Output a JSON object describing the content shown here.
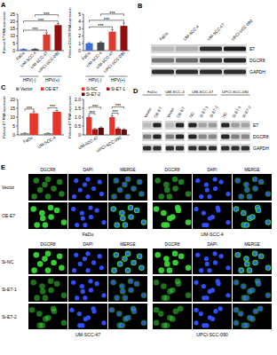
{
  "chart_data": [
    {
      "type": "bar",
      "y_label": "Relative E7 RNA expression",
      "categories": [
        "FaDu",
        "UM-SCC-4",
        "UM-SCC-47",
        "UPCI-SCC-090"
      ],
      "values": [
        1,
        1.1,
        11,
        17.5
      ],
      "errors": [
        0.1,
        0.15,
        1.2,
        1
      ],
      "colors": [
        "#3d6fd8",
        "#4a4a4a",
        "#e03a2f",
        "#8e1010"
      ],
      "ylim": [
        0,
        25
      ],
      "yticks": [
        0,
        5,
        10,
        15,
        20,
        25
      ],
      "category_groups": [
        {
          "label": "HPV(-)",
          "from": 0,
          "to": 1
        },
        {
          "label": "HPV(+)",
          "from": 2,
          "to": 3
        }
      ],
      "annotations": [
        {
          "text": "***",
          "from": 0,
          "to": 2
        },
        {
          "text": "***",
          "from": 0,
          "to": 3
        },
        {
          "text": "***",
          "from": 1,
          "to": 3
        }
      ]
    },
    {
      "type": "bar",
      "y_label": "Relative DGCR8 RNA expression",
      "categories": [
        "FaDu",
        "UM-SCC-4",
        "UM-SCC-47",
        "UPCI-SCC-090"
      ],
      "values": [
        1,
        1.1,
        2.6,
        3.4
      ],
      "errors": [
        0.08,
        0.1,
        0.3,
        0.4
      ],
      "colors": [
        "#3d6fd8",
        "#4a4a4a",
        "#e03a2f",
        "#8e1010"
      ],
      "ylim": [
        0,
        5
      ],
      "yticks": [
        0,
        1,
        2,
        3,
        4,
        5
      ],
      "category_groups": [
        {
          "label": "HPV(-)",
          "from": 0,
          "to": 1
        },
        {
          "label": "HPV(+)",
          "from": 2,
          "to": 3
        }
      ],
      "annotations": [
        {
          "text": "***",
          "from": 0,
          "to": 2
        },
        {
          "text": "***",
          "from": 0,
          "to": 3
        },
        {
          "text": "***",
          "from": 1,
          "to": 3
        }
      ]
    },
    {
      "type": "bar",
      "y_label": "Relative E7 RNA expression",
      "categories": [
        "FaDu",
        "UM-SCC-4"
      ],
      "series": [
        {
          "name": "Vector",
          "color": "#8c8c8c",
          "values": [
            1,
            1
          ],
          "errors": [
            0.1,
            0.12
          ]
        },
        {
          "name": "OE-E7",
          "color": "#e8352b",
          "values": [
            12.2,
            13
          ],
          "errors": [
            0.9,
            0.8
          ]
        }
      ],
      "ylim": [
        0,
        20
      ],
      "yticks": [
        0,
        5,
        10,
        15,
        20
      ],
      "annotations": [
        {
          "text": "***",
          "group": 0,
          "from": 0,
          "to": 1
        },
        {
          "text": "***",
          "group": 1,
          "from": 0,
          "to": 1
        }
      ]
    },
    {
      "type": "bar",
      "y_label": "Relative E7 RNA expression",
      "categories": [
        "UM-SCC-47",
        "UPCI-SCC-090"
      ],
      "series": [
        {
          "name": "Si-NC",
          "color": "#e8352b",
          "values": [
            1,
            1
          ],
          "errors": [
            0.06,
            0.08
          ]
        },
        {
          "name": "Si-E7-1",
          "color": "#a01818",
          "values": [
            0.32,
            0.36
          ],
          "errors": [
            0.04,
            0.05
          ]
        },
        {
          "name": "Si-E7-2",
          "color": "#5e0b0b",
          "values": [
            0.4,
            0.3
          ],
          "errors": [
            0.05,
            0.04
          ]
        }
      ],
      "ylim": [
        0,
        2
      ],
      "yticks": [
        0,
        0.5,
        {
          "value": 1,
          "label": "1.0"
        },
        1.5,
        {
          "value": 2,
          "label": "2.0"
        }
      ],
      "annotations": [
        {
          "text": "***",
          "group": 0,
          "from": 0,
          "to": 1
        },
        {
          "text": "***",
          "group": 0,
          "from": 0,
          "to": 2
        },
        {
          "text": "***",
          "group": 1,
          "from": 0,
          "to": 1
        },
        {
          "text": "***",
          "group": 1,
          "from": 0,
          "to": 2
        }
      ]
    }
  ],
  "figure": {
    "panel_letters": [
      "A",
      "B",
      "C",
      "D",
      "E"
    ],
    "blot_b": {
      "columns": [
        "FaDu",
        "UM-SCC-4",
        "UM-SCC-47",
        "UPCI-SCC-090"
      ],
      "rows": [
        "E7",
        "DGCR8",
        "GAPDH"
      ]
    },
    "blot_d": {
      "groups": [
        {
          "label": "FaDu",
          "lanes": [
            "Vector",
            "OE-E7"
          ]
        },
        {
          "label": "UM-SCC-4",
          "lanes": [
            "Vector",
            "OE-E7"
          ]
        },
        {
          "label": "UM-SCC-47",
          "lanes": [
            "NC",
            "Si-E7-1",
            "Si-E7-2"
          ]
        },
        {
          "label": "UPCI-SCC-090",
          "lanes": [
            "NC",
            "Si-E7-1",
            "Si-E7-2"
          ]
        }
      ],
      "rows": [
        "E7",
        "DGCR8",
        "GAPDH"
      ]
    },
    "if_e": {
      "channels": [
        "DGCR8",
        "DAPI",
        "MERGE"
      ],
      "blocks": [
        {
          "rows": [
            "Vector",
            "OE-E7"
          ],
          "groups": [
            "FaDu",
            "UM-SCC-4"
          ]
        },
        {
          "rows": [
            "Si-NC",
            "Si-E7-1",
            "Si-E7-2"
          ],
          "groups": [
            "UM-SCC-47",
            "UPCI-SCC-090"
          ]
        }
      ]
    }
  }
}
